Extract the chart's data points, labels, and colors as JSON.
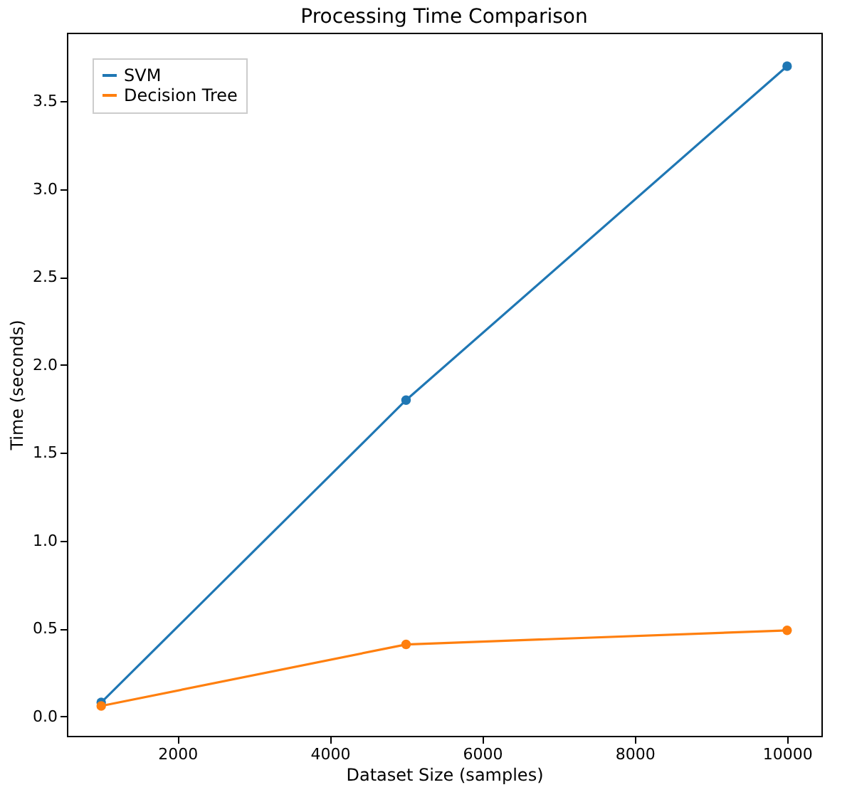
{
  "chart_data": {
    "type": "line",
    "title": "Processing Time Comparison",
    "xlabel": "Dataset Size (samples)",
    "ylabel": "Time (seconds)",
    "x": [
      1000,
      5000,
      10000
    ],
    "series": [
      {
        "name": "SVM",
        "color": "#1f77b4",
        "values": [
          0.08,
          1.8,
          3.7
        ]
      },
      {
        "name": "Decision Tree",
        "color": "#ff7f0e",
        "values": [
          0.06,
          0.41,
          0.49
        ]
      }
    ],
    "xlim": [
      550,
      10450
    ],
    "xticks": [
      2000,
      4000,
      6000,
      8000,
      10000
    ],
    "ylim": [
      -0.11,
      3.89
    ],
    "yticks": [
      {
        "value": 0,
        "label": "0.0"
      },
      0.5,
      {
        "value": 1,
        "label": "1.0"
      },
      1.5,
      {
        "value": 2,
        "label": "2.0"
      },
      2.5,
      {
        "value": 3,
        "label": "3.0"
      },
      3.5
    ],
    "grid": false,
    "legend": "top left",
    "marker": "circle",
    "line_style": "solid"
  }
}
